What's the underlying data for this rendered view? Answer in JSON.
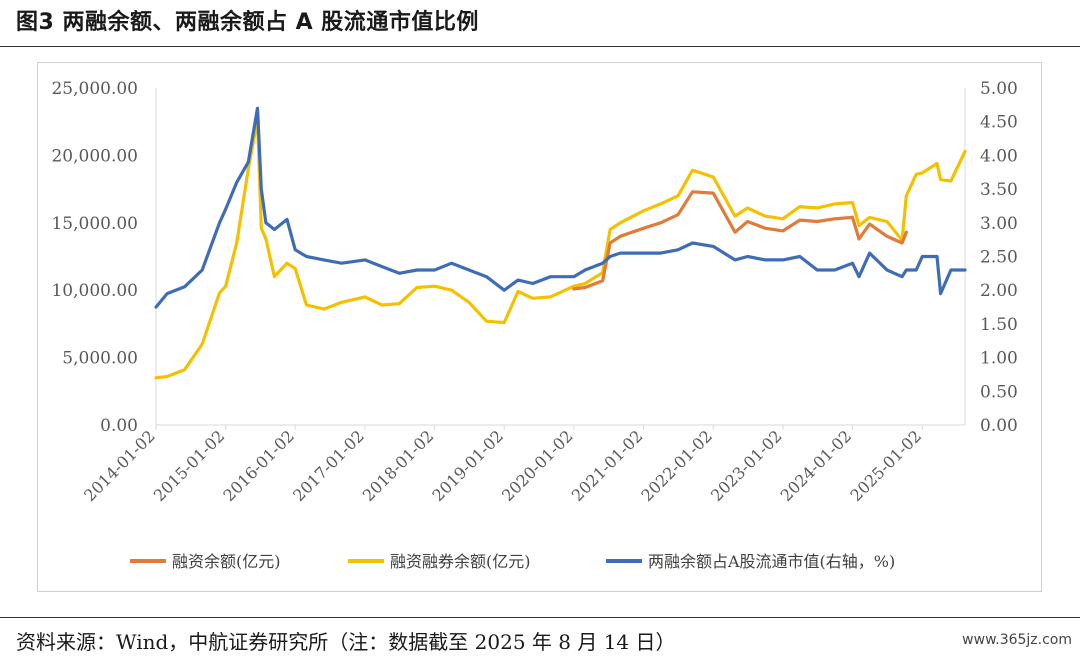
{
  "figure_title": "图3 两融余额、两融余额占 A 股流通市值比例",
  "source_note": "资料来源：Wind，中航证券研究所（注：数据截至 2025 年 8 月 14 日）",
  "watermark": "www.365jz.com",
  "chart_data": {
    "type": "line",
    "x_ticks": [
      "2014-01-02",
      "2015-01-02",
      "2016-01-02",
      "2017-01-02",
      "2018-01-02",
      "2019-01-02",
      "2020-01-02",
      "2021-01-02",
      "2022-01-02",
      "2023-01-02",
      "2024-01-02",
      "2025-01-02"
    ],
    "x_range": [
      "2014-01-02",
      "2025-08-14"
    ],
    "y_left": {
      "range": [
        0,
        25000
      ],
      "ticks": [
        "0.00",
        "5,000.00",
        "10,000.00",
        "15,000.00",
        "20,000.00",
        "25,000.00"
      ]
    },
    "y_right": {
      "range": [
        0,
        5
      ],
      "ticks": [
        "0.00",
        "0.50",
        "1.00",
        "1.50",
        "2.00",
        "2.50",
        "3.00",
        "3.50",
        "4.00",
        "4.50",
        "5.00"
      ]
    },
    "grid": false,
    "legend_position": "bottom",
    "series": [
      {
        "name": "融资余额(亿元)",
        "axis": "left",
        "color": "#E07B39",
        "x": [
          "2020-01-02",
          "2020-03-01",
          "2020-06-01",
          "2020-07-10",
          "2020-09-01",
          "2021-01-02",
          "2021-04-01",
          "2021-07-01",
          "2021-09-15",
          "2022-01-02",
          "2022-04-26",
          "2022-07-01",
          "2022-10-01",
          "2023-01-02",
          "2023-04-01",
          "2023-07-01",
          "2023-10-01",
          "2024-01-02",
          "2024-02-05",
          "2024-04-01",
          "2024-07-01",
          "2024-09-18",
          "2024-10-10"
        ],
        "y": [
          10100,
          10200,
          10700,
          13500,
          14000,
          14600,
          15000,
          15600,
          17300,
          17200,
          14300,
          15100,
          14600,
          14400,
          15200,
          15100,
          15300,
          15400,
          13800,
          14900,
          14000,
          13500,
          14300
        ]
      },
      {
        "name": "融资融券余额(亿元)",
        "axis": "left",
        "color": "#F5C000",
        "x": [
          "2014-01-02",
          "2014-03-01",
          "2014-06-01",
          "2014-09-01",
          "2014-12-01",
          "2015-01-02",
          "2015-03-01",
          "2015-05-01",
          "2015-06-18",
          "2015-07-08",
          "2015-08-01",
          "2015-09-15",
          "2015-11-20",
          "2016-01-02",
          "2016-03-01",
          "2016-06-01",
          "2016-09-01",
          "2017-01-02",
          "2017-04-01",
          "2017-07-01",
          "2017-10-01",
          "2018-01-02",
          "2018-04-01",
          "2018-07-01",
          "2018-10-01",
          "2019-01-02",
          "2019-03-15",
          "2019-06-01",
          "2019-09-01",
          "2020-01-02",
          "2020-03-01",
          "2020-06-01",
          "2020-07-10",
          "2020-09-01",
          "2021-01-02",
          "2021-04-01",
          "2021-07-01",
          "2021-09-15",
          "2022-01-02",
          "2022-04-26",
          "2022-07-01",
          "2022-10-01",
          "2023-01-02",
          "2023-04-01",
          "2023-07-01",
          "2023-10-01",
          "2024-01-02",
          "2024-02-05",
          "2024-04-01",
          "2024-07-01",
          "2024-09-18",
          "2024-10-10",
          "2024-12-01",
          "2025-01-02",
          "2025-03-20",
          "2025-04-08",
          "2025-06-01",
          "2025-08-14"
        ],
        "y": [
          3500,
          3600,
          4100,
          6000,
          9800,
          10300,
          13500,
          19000,
          22700,
          14600,
          13800,
          11000,
          12000,
          11600,
          8900,
          8600,
          9100,
          9500,
          8900,
          9000,
          10200,
          10300,
          10000,
          9100,
          7700,
          7600,
          9900,
          9400,
          9500,
          10300,
          10500,
          11300,
          14500,
          15000,
          15900,
          16400,
          17000,
          18900,
          18400,
          15500,
          16100,
          15500,
          15300,
          16200,
          16100,
          16400,
          16500,
          14800,
          15400,
          15100,
          13700,
          17000,
          18600,
          18700,
          19400,
          18200,
          18100,
          20300
        ]
      },
      {
        "name": "两融余额占A股流通市值(右轴，%)",
        "axis": "right",
        "color": "#3F6DB5",
        "x": [
          "2014-01-02",
          "2014-03-01",
          "2014-06-01",
          "2014-09-01",
          "2014-12-01",
          "2015-01-02",
          "2015-03-01",
          "2015-05-01",
          "2015-06-18",
          "2015-07-08",
          "2015-08-01",
          "2015-09-15",
          "2015-11-20",
          "2016-01-02",
          "2016-03-01",
          "2016-06-01",
          "2016-09-01",
          "2017-01-02",
          "2017-04-01",
          "2017-07-01",
          "2017-10-01",
          "2018-01-02",
          "2018-04-01",
          "2018-07-01",
          "2018-10-01",
          "2019-01-02",
          "2019-03-15",
          "2019-06-01",
          "2019-09-01",
          "2020-01-02",
          "2020-03-01",
          "2020-06-01",
          "2020-07-10",
          "2020-09-01",
          "2021-01-02",
          "2021-04-01",
          "2021-07-01",
          "2021-09-15",
          "2022-01-02",
          "2022-04-26",
          "2022-07-01",
          "2022-10-01",
          "2023-01-02",
          "2023-04-01",
          "2023-07-01",
          "2023-10-01",
          "2024-01-02",
          "2024-02-05",
          "2024-04-01",
          "2024-07-01",
          "2024-09-18",
          "2024-10-10",
          "2024-12-01",
          "2025-01-02",
          "2025-03-20",
          "2025-04-08",
          "2025-06-01",
          "2025-08-14"
        ],
        "y": [
          1.75,
          1.95,
          2.05,
          2.3,
          3.0,
          3.2,
          3.6,
          3.9,
          4.7,
          3.5,
          3.0,
          2.9,
          3.05,
          2.6,
          2.5,
          2.45,
          2.4,
          2.45,
          2.35,
          2.25,
          2.3,
          2.3,
          2.4,
          2.3,
          2.2,
          2.0,
          2.15,
          2.1,
          2.2,
          2.2,
          2.3,
          2.4,
          2.5,
          2.55,
          2.55,
          2.55,
          2.6,
          2.7,
          2.65,
          2.45,
          2.5,
          2.45,
          2.45,
          2.5,
          2.3,
          2.3,
          2.4,
          2.2,
          2.55,
          2.3,
          2.2,
          2.3,
          2.3,
          2.5,
          2.5,
          1.95,
          2.3,
          2.3
        ]
      }
    ]
  }
}
